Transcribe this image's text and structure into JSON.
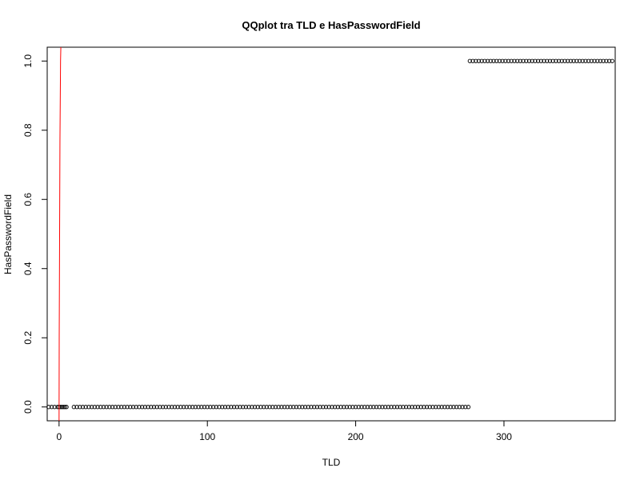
{
  "chart_data": {
    "type": "scatter",
    "title": "QQplot tra TLD e HasPasswordField",
    "xlabel": "TLD",
    "ylabel": "HasPasswordField",
    "xlim": [
      -8,
      375
    ],
    "ylim": [
      -0.04,
      1.04
    ],
    "x_ticks": [
      0,
      100,
      200,
      300
    ],
    "y_ticks": [
      0.0,
      0.2,
      0.4,
      0.6,
      0.8,
      1.0
    ],
    "x_tick_labels": [
      "0",
      "100",
      "200",
      "300"
    ],
    "y_tick_labels": [
      "0.0",
      "0.2",
      "0.4",
      "0.6",
      "0.8",
      "1.0"
    ],
    "grid": false,
    "legend": "none",
    "series": [
      {
        "group_at_y0": {
          "y": 0,
          "x": [
            -7,
            -5,
            -3,
            -1,
            0,
            1,
            2,
            3,
            4,
            5,
            10,
            12,
            14,
            16,
            18,
            20,
            22,
            24,
            26,
            28,
            30,
            32,
            34,
            36,
            38,
            40,
            42,
            44,
            46,
            48,
            50,
            52,
            54,
            56,
            58,
            60,
            62,
            64,
            66,
            68,
            70,
            72,
            74,
            76,
            78,
            80,
            82,
            84,
            86,
            88,
            90,
            92,
            94,
            96,
            98,
            100,
            102,
            104,
            106,
            108,
            110,
            112,
            114,
            116,
            118,
            120,
            122,
            124,
            126,
            128,
            130,
            132,
            134,
            136,
            138,
            140,
            142,
            144,
            146,
            148,
            150,
            152,
            154,
            156,
            158,
            160,
            162,
            164,
            166,
            168,
            170,
            172,
            174,
            176,
            178,
            180,
            182,
            184,
            186,
            188,
            190,
            192,
            194,
            196,
            198,
            200,
            202,
            204,
            206,
            208,
            210,
            212,
            214,
            216,
            218,
            220,
            222,
            224,
            226,
            228,
            230,
            232,
            234,
            236,
            238,
            240,
            242,
            244,
            246,
            248,
            250,
            252,
            254,
            256,
            258,
            260,
            262,
            264,
            266,
            268,
            270,
            272,
            274,
            276
          ]
        },
        "group_at_y1": {
          "y": 1,
          "x": [
            277,
            279,
            281,
            283,
            285,
            287,
            289,
            291,
            293,
            295,
            297,
            299,
            301,
            303,
            305,
            307,
            309,
            311,
            313,
            315,
            317,
            319,
            321,
            323,
            325,
            327,
            329,
            331,
            333,
            335,
            337,
            339,
            341,
            343,
            345,
            347,
            349,
            351,
            353,
            355,
            357,
            359,
            361,
            363,
            365,
            367,
            369,
            371,
            373
          ]
        }
      }
    ],
    "reference_line": {
      "color": "#ff0000",
      "x": [
        0,
        0.1,
        0.6,
        1.0,
        1.2
      ],
      "y": [
        -0.04,
        0.2,
        0.77,
        1.0,
        1.04
      ]
    },
    "point_color": "#000000"
  }
}
